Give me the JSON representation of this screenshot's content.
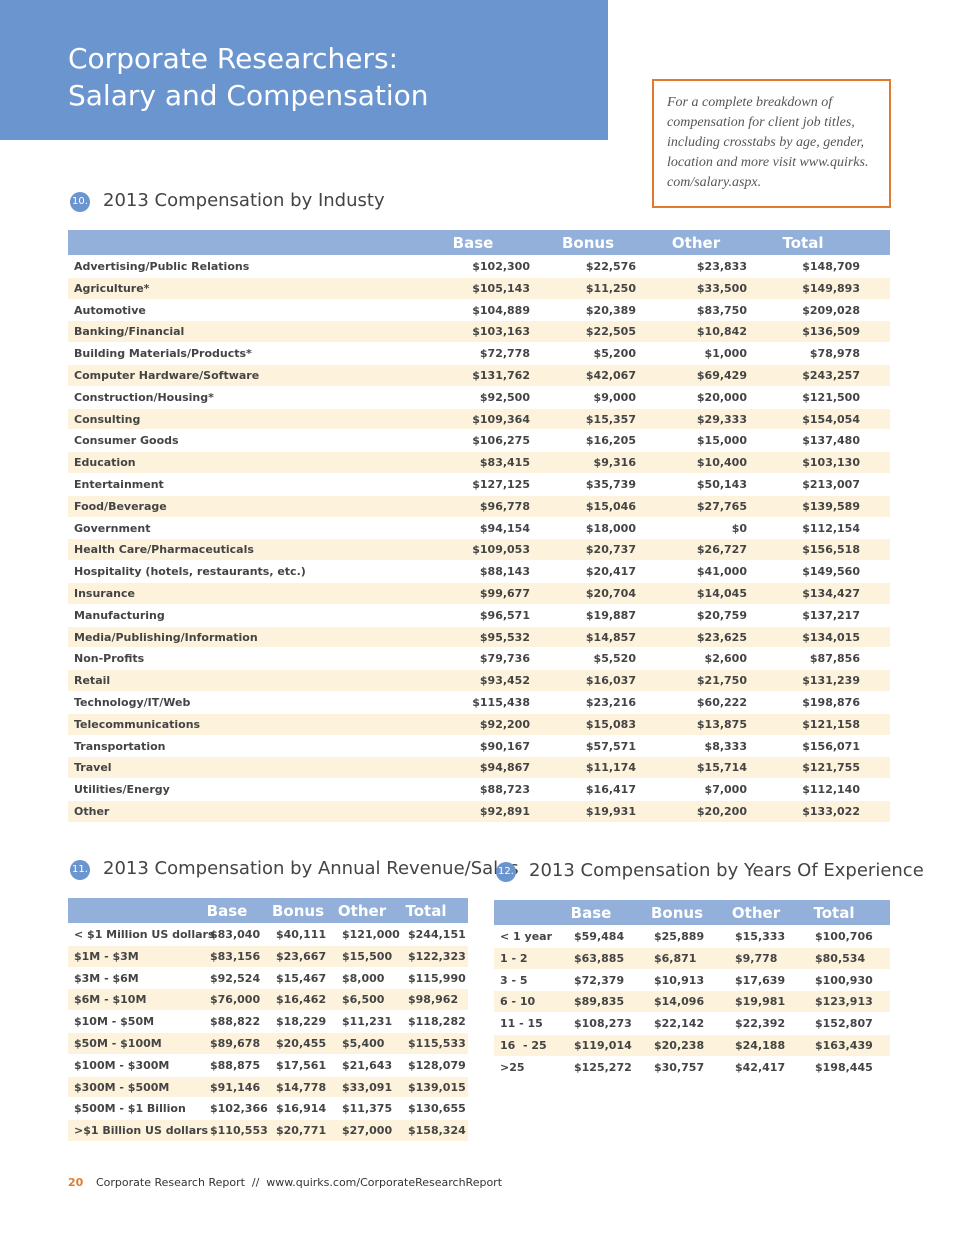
{
  "header": {
    "title_lines": [
      "Corporate Researchers:",
      "Salary and Compensation"
    ]
  },
  "callout": {
    "lines": [
      "For a complete breakdown of",
      "compensation for client job titles,",
      "including crosstabs by age, gender,",
      "location and more visit www.quirks.",
      "com/salary.aspx."
    ]
  },
  "tables": [
    {
      "number": "10.",
      "title": "2013 Compensation by Industy",
      "columns": [
        "Base",
        "Bonus",
        "Other",
        "Total"
      ],
      "rows": [
        [
          "Advertising/Public Relations",
          "$102,300",
          "$22,576",
          "$23,833",
          "$148,709"
        ],
        [
          "Agriculture*",
          "$105,143",
          "$11,250",
          "$33,500",
          "$149,893"
        ],
        [
          "Automotive",
          "$104,889",
          "$20,389",
          "$83,750",
          "$209,028"
        ],
        [
          "Banking/Financial",
          "$103,163",
          "$22,505",
          "$10,842",
          "$136,509"
        ],
        [
          "Building Materials/Products*",
          "$72,778",
          "$5,200",
          "$1,000",
          "$78,978"
        ],
        [
          "Computer Hardware/Software",
          "$131,762",
          "$42,067",
          "$69,429",
          "$243,257"
        ],
        [
          "Construction/Housing*",
          "$92,500",
          "$9,000",
          "$20,000",
          "$121,500"
        ],
        [
          "Consulting",
          "$109,364",
          "$15,357",
          "$29,333",
          "$154,054"
        ],
        [
          "Consumer Goods",
          "$106,275",
          "$16,205",
          "$15,000",
          "$137,480"
        ],
        [
          "Education",
          "$83,415",
          "$9,316",
          "$10,400",
          "$103,130"
        ],
        [
          "Entertainment",
          "$127,125",
          "$35,739",
          "$50,143",
          "$213,007"
        ],
        [
          "Food/Beverage",
          "$96,778",
          "$15,046",
          "$27,765",
          "$139,589"
        ],
        [
          "Government",
          "$94,154",
          "$18,000",
          "$0",
          "$112,154"
        ],
        [
          "Health Care/Pharmaceuticals",
          "$109,053",
          "$20,737",
          "$26,727",
          "$156,518"
        ],
        [
          "Hospitality (hotels, restaurants, etc.)",
          "$88,143",
          "$20,417",
          "$41,000",
          "$149,560"
        ],
        [
          "Insurance",
          "$99,677",
          "$20,704",
          "$14,045",
          "$134,427"
        ],
        [
          "Manufacturing",
          "$96,571",
          "$19,887",
          "$20,759",
          "$137,217"
        ],
        [
          "Media/Publishing/Information",
          "$95,532",
          "$14,857",
          "$23,625",
          "$134,015"
        ],
        [
          "Non-Profits",
          "$79,736",
          "$5,520",
          "$2,600",
          "$87,856"
        ],
        [
          "Retail",
          "$93,452",
          "$16,037",
          "$21,750",
          "$131,239"
        ],
        [
          "Technology/IT/Web",
          "$115,438",
          "$23,216",
          "$60,222",
          "$198,876"
        ],
        [
          "Telecommunications",
          "$92,200",
          "$15,083",
          "$13,875",
          "$121,158"
        ],
        [
          "Transportation",
          "$90,167",
          "$57,571",
          "$8,333",
          "$156,071"
        ],
        [
          "Travel",
          "$94,867",
          "$11,174",
          "$15,714",
          "$121,755"
        ],
        [
          "Utilities/Energy",
          "$88,723",
          "$16,417",
          "$7,000",
          "$112,140"
        ],
        [
          "Other",
          "$92,891",
          "$19,931",
          "$20,200",
          "$133,022"
        ]
      ]
    },
    {
      "number": "11.",
      "title": "2013 Compensation by Annual Revenue/Sales",
      "columns": [
        "Base",
        "Bonus",
        "Other",
        "Total"
      ],
      "rows": [
        [
          "< $1 Million US dollars",
          "$83,040",
          "$40,111",
          "$121,000",
          "$244,151"
        ],
        [
          "$1M - $3M",
          "$83,156",
          "$23,667",
          "$15,500",
          "$122,323"
        ],
        [
          "$3M - $6M",
          "$92,524",
          "$15,467",
          "$8,000",
          "$115,990"
        ],
        [
          "$6M - $10M",
          "$76,000",
          "$16,462",
          "$6,500",
          "$98,962"
        ],
        [
          "$10M - $50M",
          "$88,822",
          "$18,229",
          "$11,231",
          "$118,282"
        ],
        [
          "$50M - $100M",
          "$89,678",
          "$20,455",
          "$5,400",
          "$115,533"
        ],
        [
          "$100M - $300M",
          "$88,875",
          "$17,561",
          "$21,643",
          "$128,079"
        ],
        [
          "$300M - $500M",
          "$91,146",
          "$14,778",
          "$33,091",
          "$139,015"
        ],
        [
          "$500M - $1 Billion",
          "$102,366",
          "$16,914",
          "$11,375",
          "$130,655"
        ],
        [
          ">$1 Billion US dollars",
          "$110,553",
          "$20,771",
          "$27,000",
          "$158,324"
        ]
      ]
    },
    {
      "number": "12.",
      "title": "2013 Compensation by Years Of Experience",
      "columns": [
        "Base",
        "Bonus",
        "Other",
        "Total"
      ],
      "rows": [
        [
          "< 1 year",
          "$59,484",
          "$25,889",
          "$15,333",
          "$100,706"
        ],
        [
          "1 - 2",
          "$63,885",
          "$6,871",
          "$9,778",
          "$80,534"
        ],
        [
          "3 - 5",
          "$72,379",
          "$10,913",
          "$17,639",
          "$100,930"
        ],
        [
          "6 - 10",
          "$89,835",
          "$14,096",
          "$19,981",
          "$123,913"
        ],
        [
          "11 - 15",
          "$108,273",
          "$22,142",
          "$22,392",
          "$152,807"
        ],
        [
          "16  - 25",
          "$119,014",
          "$20,238",
          "$24,188",
          "$163,439"
        ],
        [
          ">25",
          "$125,272",
          "$30,757",
          "$42,417",
          "$198,445"
        ]
      ]
    }
  ],
  "footer": {
    "page": "20",
    "text": "Corporate Research Report  //  www.quirks.com/CorporateResearchReport"
  }
}
